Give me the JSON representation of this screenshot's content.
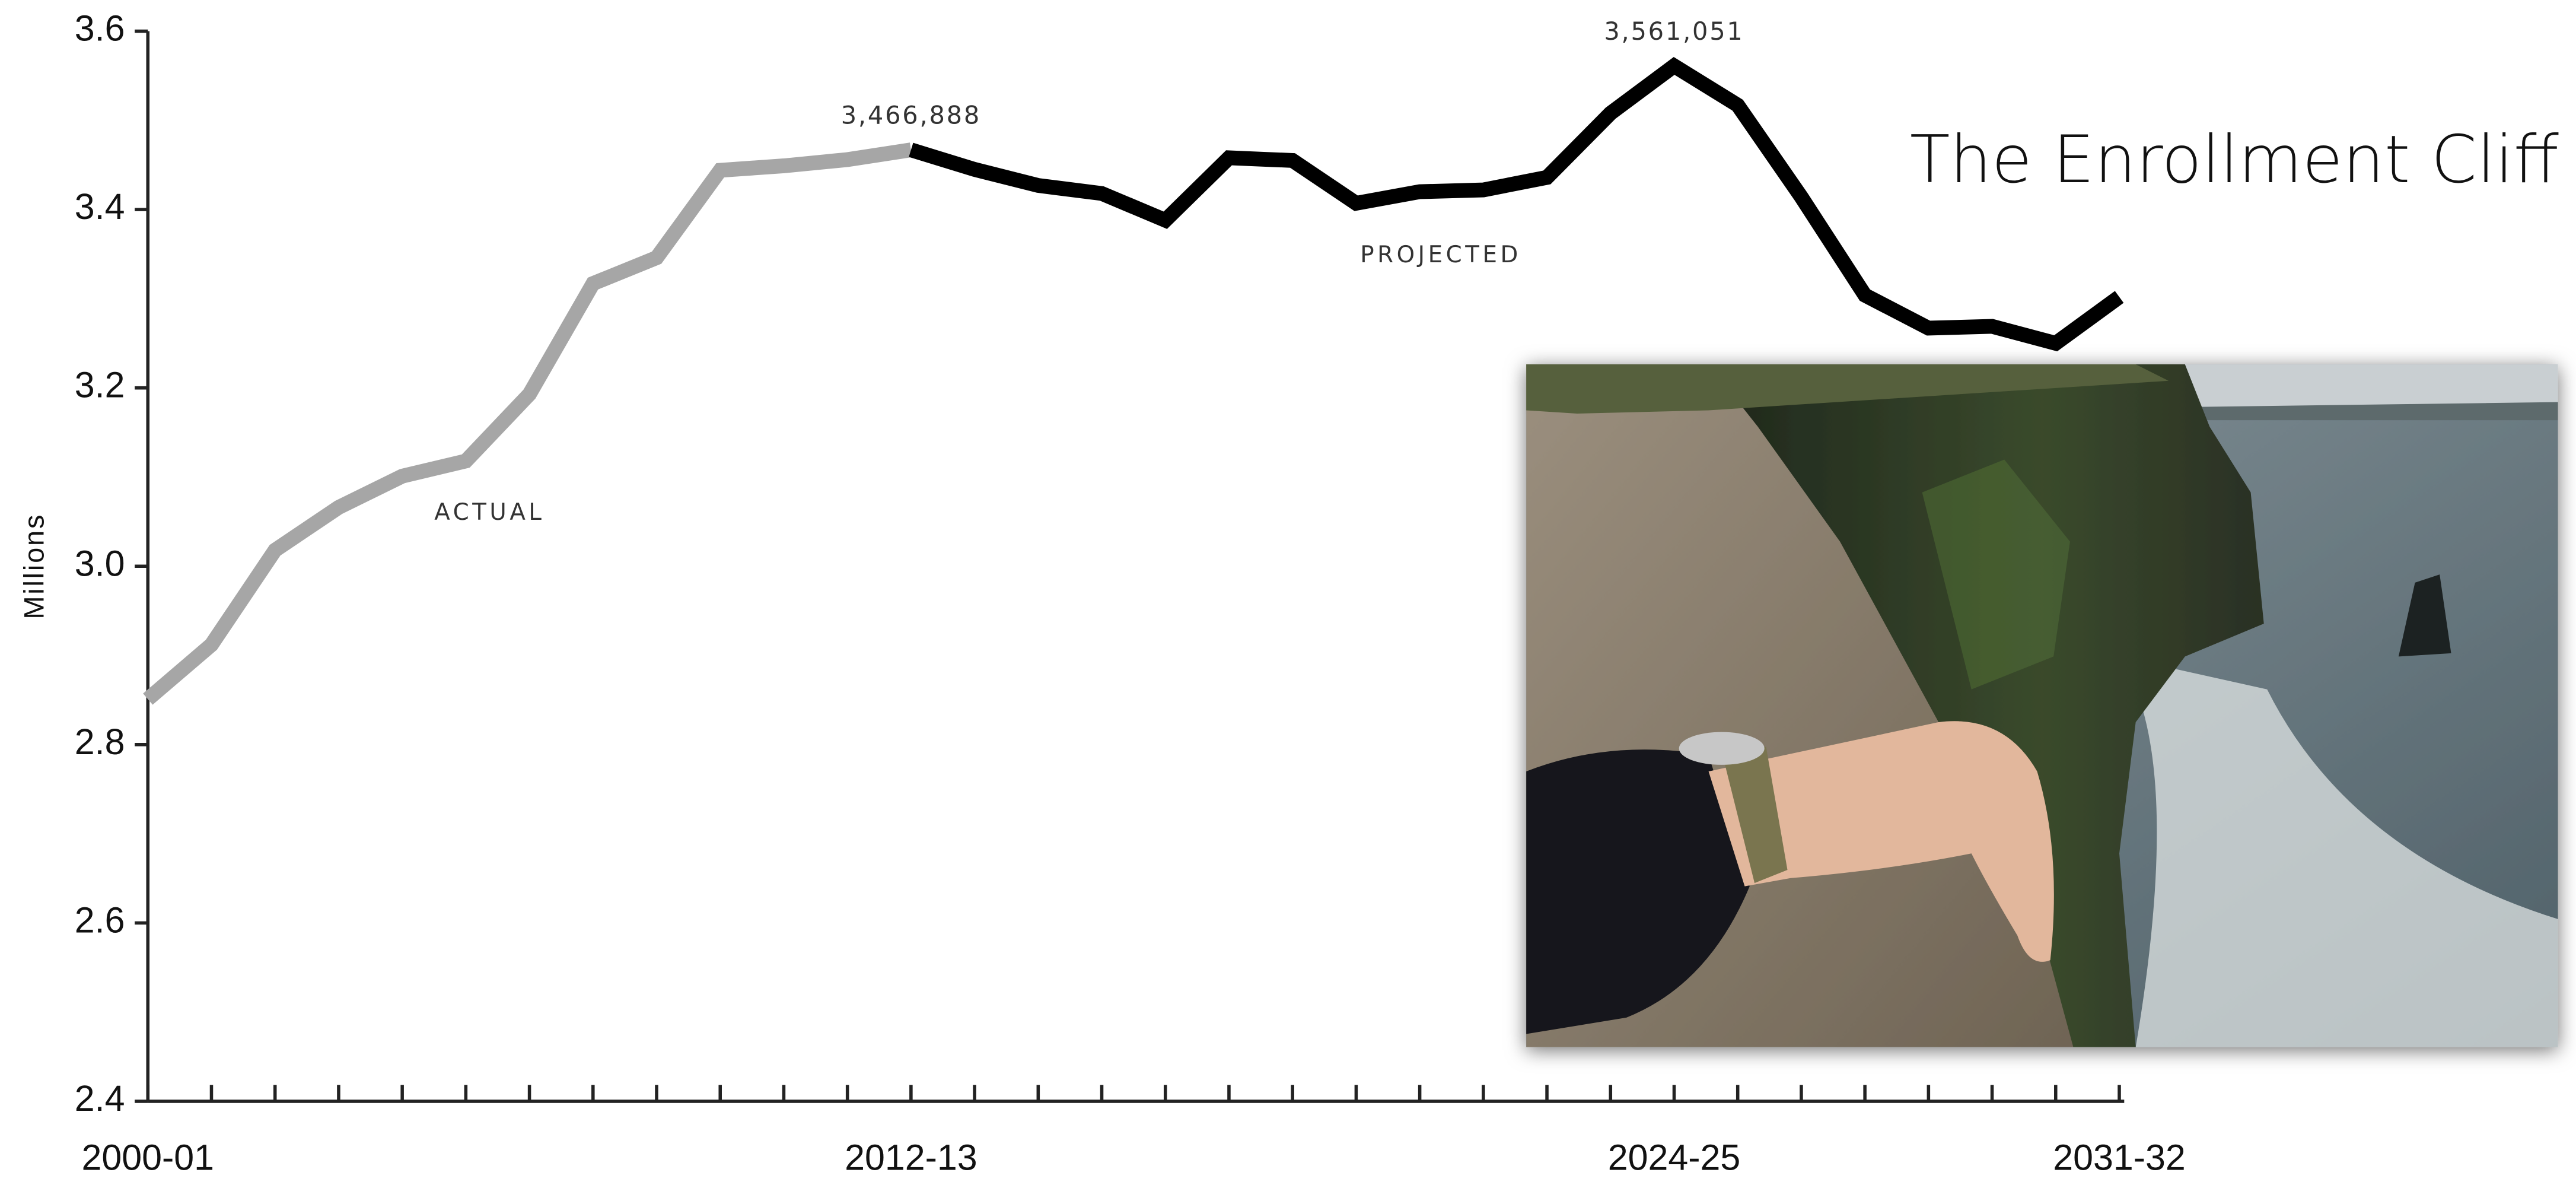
{
  "chart_data": {
    "type": "line",
    "title": "The Enrollment Cliff",
    "y_label": "Millions",
    "categories": [
      "2000-01",
      null,
      null,
      null,
      null,
      null,
      null,
      null,
      null,
      null,
      null,
      null,
      "2012-13",
      null,
      null,
      null,
      null,
      null,
      null,
      null,
      null,
      null,
      null,
      null,
      "2024-25",
      null,
      null,
      null,
      null,
      null,
      null,
      "2031-32"
    ],
    "series": [
      {
        "name": "ACTUAL",
        "color": "#a6a6a6",
        "values": [
          2.851,
          2.912,
          3.018,
          3.066,
          3.101,
          3.118,
          3.193,
          3.317,
          3.346,
          3.444,
          3.449,
          3.456,
          3.466888,
          null,
          null,
          null,
          null,
          null,
          null,
          null,
          null,
          null,
          null,
          null,
          null,
          null,
          null,
          null,
          null,
          null,
          null,
          null
        ]
      },
      {
        "name": "PROJECTED",
        "color": "#000000",
        "values": [
          null,
          null,
          null,
          null,
          null,
          null,
          null,
          null,
          null,
          null,
          null,
          null,
          3.466888,
          3.445,
          3.427,
          3.418,
          3.388,
          3.458,
          3.455,
          3.407,
          3.42,
          3.422,
          3.436,
          3.508,
          3.561051,
          3.517,
          3.414,
          3.304,
          3.267,
          3.269,
          3.25,
          3.302
        ],
        "value_labels": [
          null,
          null,
          null,
          null,
          null,
          null,
          null,
          null,
          null,
          null,
          null,
          null,
          "3,466,888",
          null,
          null,
          null,
          null,
          null,
          null,
          null,
          null,
          null,
          null,
          null,
          "3,561,051",
          null,
          null,
          null,
          null,
          null,
          null,
          null
        ]
      }
    ],
    "ylim": [
      2.4,
      3.6
    ],
    "yticks": [
      2.4,
      2.6,
      2.8,
      {
        "value": 3,
        "label": "3.0"
      },
      3.2,
      3.4,
      3.6
    ],
    "grid": false
  }
}
